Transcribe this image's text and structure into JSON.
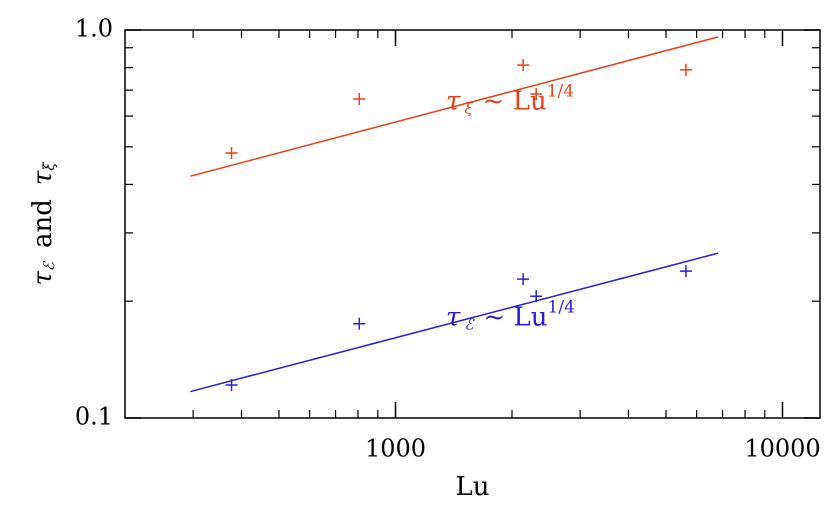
{
  "chart_data": {
    "type": "scatter",
    "x_label": "Lu",
    "y_label": {
      "a": "τ",
      "a_sub": "ℰ",
      "mid": "and",
      "b": "τ",
      "b_sub": "ξ"
    },
    "xlim": [
      200,
      12500
    ],
    "ylim": [
      0.1,
      1.0
    ],
    "log_x": true,
    "log_y": true,
    "xticks": [
      1000,
      10000
    ],
    "xminorticks": [
      300,
      400,
      500,
      600,
      700,
      800,
      900,
      2000,
      3000,
      4000,
      5000,
      6000,
      7000,
      8000,
      9000
    ],
    "yticks": [
      0.1,
      {
        "value": 1,
        "label": "1.0"
      }
    ],
    "yminorticks": [
      0.2,
      0.3,
      0.4,
      0.5,
      0.6,
      0.7,
      0.8,
      0.9
    ],
    "series": [
      {
        "name": "tau_xi",
        "color": "#e8401c",
        "x": [
          377,
          806,
          2137,
          2310,
          5630
        ],
        "values": [
          0.482,
          0.664,
          0.812,
          0.684,
          0.789
        ],
        "fit": {
          "x": [
            295,
            6820
          ],
          "values": [
            0.42,
            0.96
          ]
        },
        "annotation": {
          "symbol": "τ",
          "sub": "ξ",
          "text": "~ Lu",
          "sup": "1/4"
        }
      },
      {
        "name": "tau_E",
        "color": "#2a1fd6",
        "x": [
          377,
          806,
          2137,
          2310,
          5630
        ],
        "values": [
          0.1216,
          0.175,
          0.228,
          0.206,
          0.239
        ],
        "fit": {
          "x": [
            295,
            6820
          ],
          "values": [
            0.117,
            0.266
          ]
        },
        "annotation": {
          "symbol": "τ",
          "sub": "ℰ",
          "text": "~ Lu",
          "sup": "1/4"
        }
      }
    ]
  }
}
